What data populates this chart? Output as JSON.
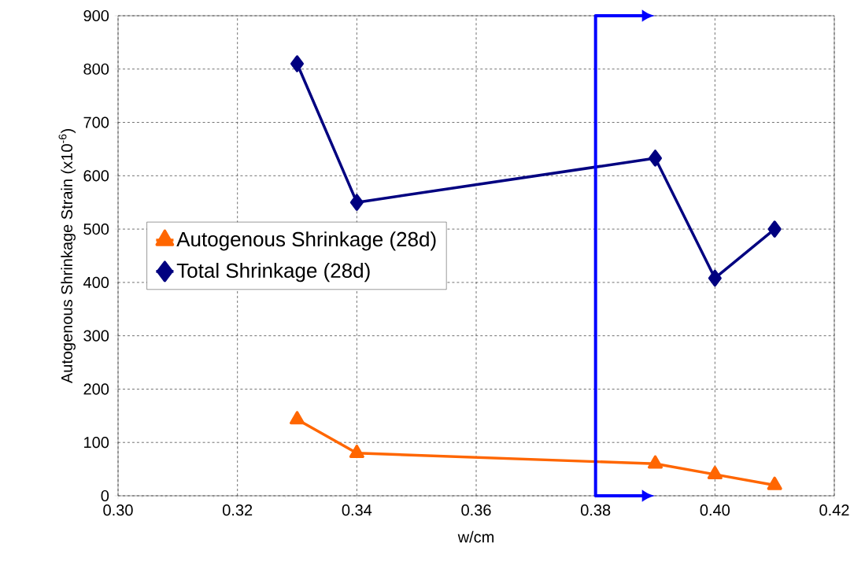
{
  "chart_data": {
    "type": "line",
    "xlabel": "w/cm",
    "ylabel": "Autogenous Shrinkage Strain (x10$^{-6}$)",
    "xlim": [
      0.3,
      0.42
    ],
    "xticks": [
      {
        "value": 0.3,
        "label": "0.30"
      },
      0.32,
      0.34,
      0.36,
      0.38,
      {
        "value": 0.4,
        "label": "0.40"
      },
      0.42
    ],
    "ylim": [
      0,
      900
    ],
    "yticks": [
      0,
      100,
      200,
      300,
      400,
      500,
      600,
      700,
      800,
      900
    ],
    "grid": true,
    "legend": "left",
    "line_style": "solid",
    "series": [
      {
        "name": "Autogenous Shrinkage (28d)",
        "color": "#ff6600",
        "marker": "triangle",
        "x": [
          0.33,
          0.34,
          0.39,
          0.4,
          0.41
        ],
        "values": [
          143,
          80,
          60,
          40,
          20
        ]
      },
      {
        "name": "Total Shrinkage (28d)",
        "color": "#000080",
        "marker": "diamond",
        "x": [
          0.33,
          0.34,
          0.39,
          0.4,
          0.41
        ],
        "values": [
          810,
          550,
          633,
          408,
          500
        ]
      }
    ],
    "ref_lines": [
      {
        "axis": "x",
        "value": 0.38,
        "color": "#0000ff"
      }
    ]
  }
}
